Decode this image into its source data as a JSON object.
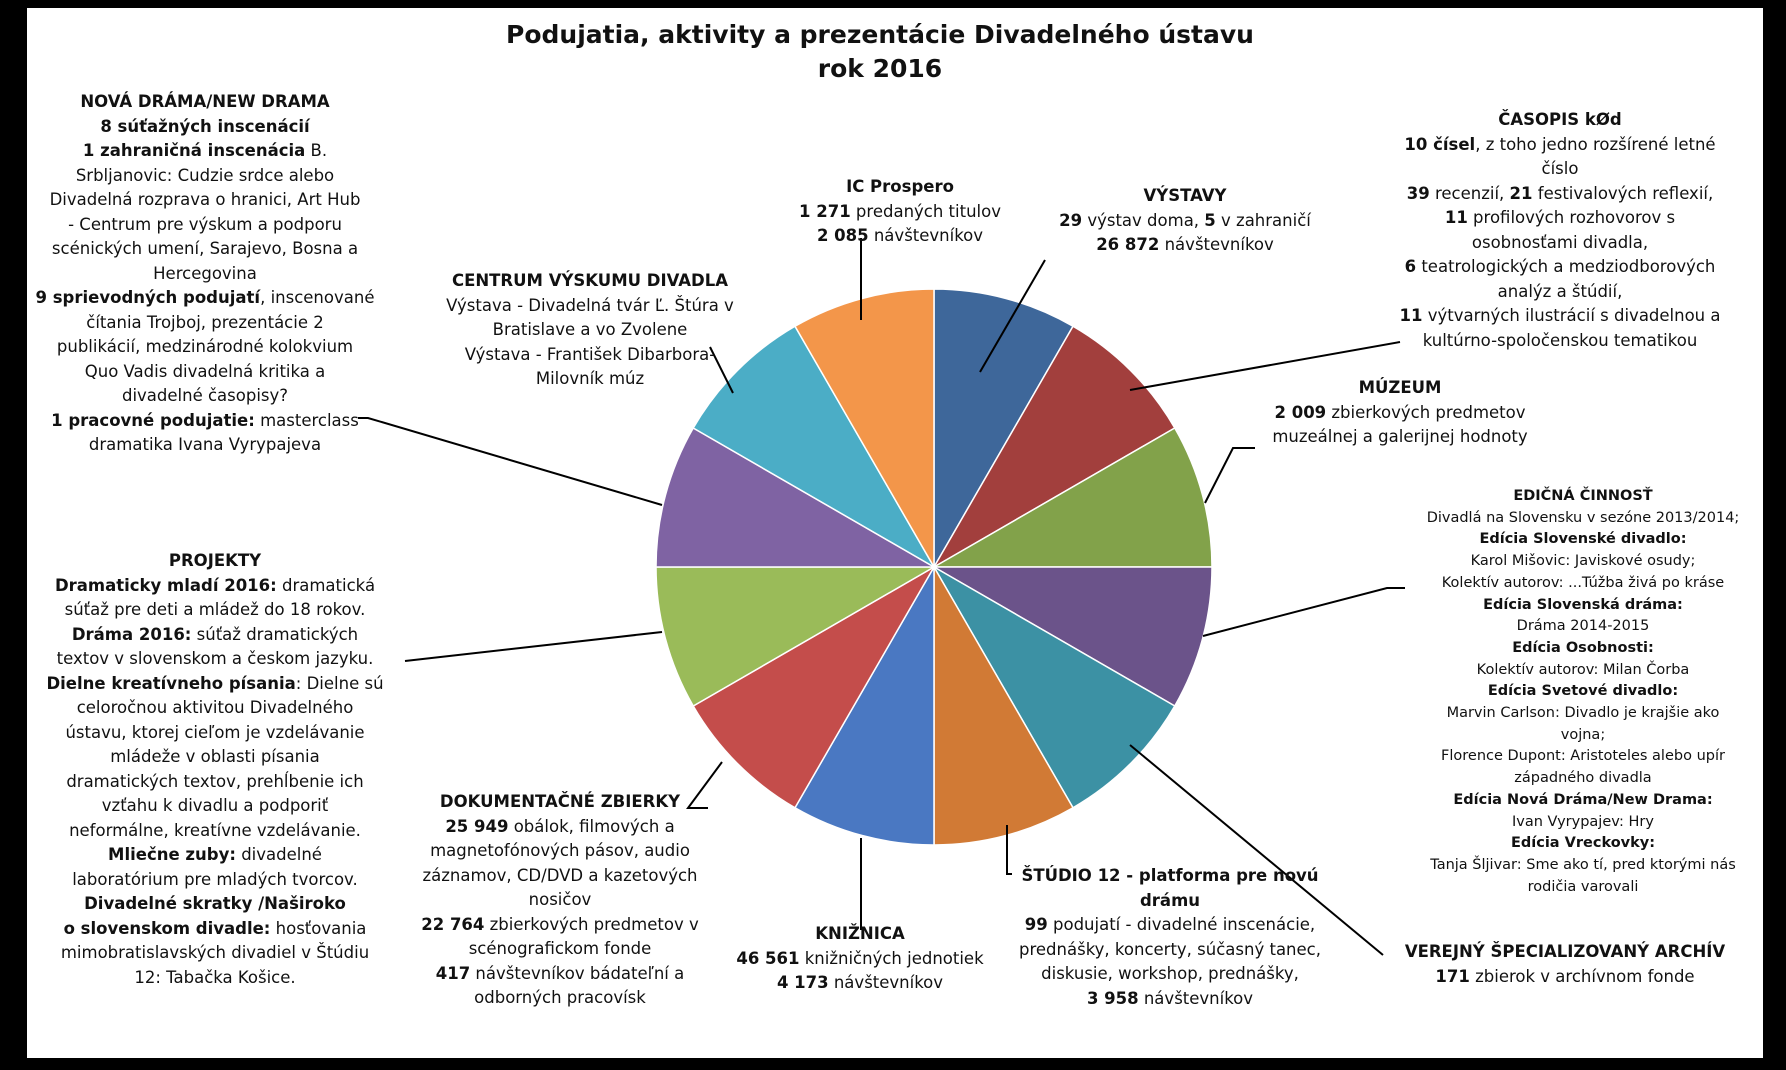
{
  "chart_data": {
    "type": "pie",
    "title": "Podujatia, aktivity a prezentácie Divadelného ústavu",
    "subtitle": "rok 2016",
    "slices": [
      {
        "name": "VÝSTAVY",
        "value": 1,
        "color": "#3e679a"
      },
      {
        "name": "ČASOPIS kØd",
        "value": 1,
        "color": "#a23f3d"
      },
      {
        "name": "MÚZEUM",
        "value": 1,
        "color": "#82a24a"
      },
      {
        "name": "EDIČNÁ ČINNOSŤ",
        "value": 1,
        "color": "#6b538a"
      },
      {
        "name": "VEREJNÝ ŠPECIALIZOVANÝ ARCHÍV",
        "value": 1,
        "color": "#3c91a4"
      },
      {
        "name": "ŠTÚDIO 12 - platforma pre novú drámu",
        "value": 1,
        "color": "#d17a35"
      },
      {
        "name": "KNIŽNICA",
        "value": 1,
        "color": "#4a78c2"
      },
      {
        "name": "DOKUMENTAČNÉ ZBIERKY",
        "value": 1,
        "color": "#c44d4b"
      },
      {
        "name": "PROJEKTY",
        "value": 1,
        "color": "#9abb59"
      },
      {
        "name": "NOVÁ DRÁMA/NEW DRAMA",
        "value": 1,
        "color": "#7f63a3"
      },
      {
        "name": "CENTRUM VÝSKUMU DIVADLA",
        "value": 1,
        "color": "#4badc6"
      },
      {
        "name": "IC Prospero",
        "value": 1,
        "color": "#f3964a"
      }
    ]
  },
  "labels": {
    "vystavy": [
      [
        {
          "t": "VÝSTAVY",
          "b": true
        }
      ],
      [
        {
          "t": "29",
          "b": true
        },
        {
          "t": " výstav doma, "
        },
        {
          "t": "5",
          "b": true
        },
        {
          "t": " v zahraničí"
        }
      ],
      [
        {
          "t": "26 872",
          "b": true
        },
        {
          "t": " návštevníkov"
        }
      ]
    ],
    "casopis": [
      [
        {
          "t": "ČASOPIS kØd",
          "b": true
        }
      ],
      [
        {
          "t": "10 čísel",
          "b": true
        },
        {
          "t": ", z toho jedno rozšírené letné"
        }
      ],
      [
        {
          "t": "číslo"
        }
      ],
      [
        {
          "t": "39",
          "b": true
        },
        {
          "t": " recenzií, "
        },
        {
          "t": "21",
          "b": true
        },
        {
          "t": " festivalových reflexií,"
        }
      ],
      [
        {
          "t": "11",
          "b": true
        },
        {
          "t": " profilových rozhovorov s"
        }
      ],
      [
        {
          "t": "osobnosťami divadla,"
        }
      ],
      [
        {
          "t": "6",
          "b": true
        },
        {
          "t": " teatrologických a medziodborových"
        }
      ],
      [
        {
          "t": "analýz a štúdií,"
        }
      ],
      [
        {
          "t": "11",
          "b": true
        },
        {
          "t": " výtvarných ilustrácií s divadelnou a"
        }
      ],
      [
        {
          "t": "kultúrno-spoločenskou tematikou"
        }
      ]
    ],
    "muzeum": [
      [
        {
          "t": "MÚZEUM",
          "b": true
        }
      ],
      [
        {
          "t": "2 009",
          "b": true
        },
        {
          "t": " zbierkových predmetov"
        }
      ],
      [
        {
          "t": "muzeálnej a galerijnej hodnoty"
        }
      ]
    ],
    "edicna": [
      [
        {
          "t": "EDIČNÁ ČINNOSŤ",
          "b": true
        }
      ],
      [
        {
          "t": "Divadlá na Slovensku v sezóne 2013/2014;"
        }
      ],
      [
        {
          "t": "Edícia Slovenské divadlo:",
          "b": true
        }
      ],
      [
        {
          "t": "Karol Mišovic: Javiskové osudy;"
        }
      ],
      [
        {
          "t": "Kolektív autorov: ...Túžba živá po kráse"
        }
      ],
      [
        {
          "t": "Edícia Slovenská dráma:",
          "b": true
        }
      ],
      [
        {
          "t": "Dráma 2014-2015"
        }
      ],
      [
        {
          "t": "Edícia Osobnosti:",
          "b": true
        }
      ],
      [
        {
          "t": "Kolektív autorov: Milan Čorba"
        }
      ],
      [
        {
          "t": "Edícia Svetové divadlo:",
          "b": true
        }
      ],
      [
        {
          "t": "Marvin Carlson: Divadlo je krajšie ako"
        }
      ],
      [
        {
          "t": "vojna;"
        }
      ],
      [
        {
          "t": "Florence Dupont: Aristoteles alebo upír"
        }
      ],
      [
        {
          "t": "západného divadla"
        }
      ],
      [
        {
          "t": "Edícia Nová Dráma/New Drama:",
          "b": true
        }
      ],
      [
        {
          "t": "Ivan Vyrypajev: Hry"
        }
      ],
      [
        {
          "t": "Edícia Vreckovky:",
          "b": true
        }
      ],
      [
        {
          "t": "Tanja Šljivar: Sme ako tí, pred ktorými nás"
        }
      ],
      [
        {
          "t": "rodičia varovali"
        }
      ]
    ],
    "archiv": [
      [
        {
          "t": "VEREJNÝ ŠPECIALIZOVANÝ ARCHÍV",
          "b": true
        }
      ],
      [
        {
          "t": "171",
          "b": true
        },
        {
          "t": " zbierok v archívnom fonde"
        }
      ]
    ],
    "studio": [
      [
        {
          "t": "ŠTÚDIO 12 - platforma pre novú",
          "b": true
        }
      ],
      [
        {
          "t": "drámu",
          "b": true
        }
      ],
      [
        {
          "t": "99",
          "b": true
        },
        {
          "t": " podujatí - divadelné inscenácie,"
        }
      ],
      [
        {
          "t": "prednášky, koncerty, súčasný tanec,"
        }
      ],
      [
        {
          "t": "diskusie, workshop, prednášky,"
        }
      ],
      [
        {
          "t": "3 958",
          "b": true
        },
        {
          "t": " návštevníkov"
        }
      ]
    ],
    "kniznica": [
      [
        {
          "t": "KNIŽNICA",
          "b": true
        }
      ],
      [
        {
          "t": "46 561",
          "b": true
        },
        {
          "t": " knižničných jednotiek"
        }
      ],
      [
        {
          "t": "4 173",
          "b": true
        },
        {
          "t": " návštevníkov"
        }
      ]
    ],
    "dokumentacne": [
      [
        {
          "t": "DOKUMENTAČNÉ ZBIERKY",
          "b": true
        }
      ],
      [
        {
          "t": "25 949",
          "b": true
        },
        {
          "t": " obálok, filmových a"
        }
      ],
      [
        {
          "t": "magnetofónových pásov, audio"
        }
      ],
      [
        {
          "t": "záznamov, CD/DVD a kazetových"
        }
      ],
      [
        {
          "t": "nosičov"
        }
      ],
      [
        {
          "t": "22 764",
          "b": true
        },
        {
          "t": " zbierkových predmetov v"
        }
      ],
      [
        {
          "t": "scénografickom fonde"
        }
      ],
      [
        {
          "t": "417",
          "b": true
        },
        {
          "t": " návštevníkov bádateľní a"
        }
      ],
      [
        {
          "t": "odborných pracovísk"
        }
      ]
    ],
    "projekty": [
      [
        {
          "t": "PROJEKTY",
          "b": true
        }
      ],
      [
        {
          "t": "Dramaticky mladí 2016:",
          "b": true
        },
        {
          "t": " dramatická"
        }
      ],
      [
        {
          "t": "súťaž pre deti a mládež do 18 rokov."
        }
      ],
      [
        {
          "t": "Dráma 2016:",
          "b": true
        },
        {
          "t": "  súťaž dramatických"
        }
      ],
      [
        {
          "t": "textov v slovenskom a českom jazyku."
        }
      ],
      [
        {
          "t": "Dielne kreatívneho písania",
          "b": true
        },
        {
          "t": ": Dielne sú"
        }
      ],
      [
        {
          "t": "celoročnou aktivitou Divadelného"
        }
      ],
      [
        {
          "t": "ústavu, ktorej cieľom je vzdelávanie"
        }
      ],
      [
        {
          "t": "mládeže v oblasti písania"
        }
      ],
      [
        {
          "t": "dramatických textov, prehĺbenie ich"
        }
      ],
      [
        {
          "t": "vzťahu k divadlu a podporiť"
        }
      ],
      [
        {
          "t": "neformálne, kreatívne vzdelávanie."
        }
      ],
      [
        {
          "t": "Mliečne zuby:",
          "b": true
        },
        {
          "t": "  divadelné"
        }
      ],
      [
        {
          "t": "laboratórium pre mladých tvorcov."
        }
      ],
      [
        {
          "t": "Divadelné skratky /Naširoko",
          "b": true
        }
      ],
      [
        {
          "t": "o slovenskom divadle:",
          "b": true
        },
        {
          "t": "  hosťovania"
        }
      ],
      [
        {
          "t": "mimobratislavských divadiel v Štúdiu"
        }
      ],
      [
        {
          "t": "12: Tabačka Košice."
        }
      ]
    ],
    "novadrama": [
      [
        {
          "t": "NOVÁ DRÁMA/NEW DRAMA",
          "b": true
        }
      ],
      [
        {
          "t": "8 súťažných inscenácií",
          "b": true
        }
      ],
      [
        {
          "t": "1 zahraničná inscenácia",
          "b": true
        },
        {
          "t": " B."
        }
      ],
      [
        {
          "t": "Srbljanovic: Cudzie srdce alebo"
        }
      ],
      [
        {
          "t": "Divadelná rozprava o hranici, Art Hub"
        }
      ],
      [
        {
          "t": "- Centrum pre výskum a podporu"
        }
      ],
      [
        {
          "t": "scénických umení, Sarajevo, Bosna a"
        }
      ],
      [
        {
          "t": "Hercegovina"
        }
      ],
      [
        {
          "t": "9 sprievodných podujatí",
          "b": true
        },
        {
          "t": ", inscenované"
        }
      ],
      [
        {
          "t": "čítania Trojboj, prezentácie 2"
        }
      ],
      [
        {
          "t": "publikácií, medzinárodné kolokvium"
        }
      ],
      [
        {
          "t": "Quo Vadis divadelná kritika a"
        }
      ],
      [
        {
          "t": "divadelné časopisy?"
        }
      ],
      [
        {
          "t": "1 pracovné podujatie:",
          "b": true
        },
        {
          "t": " masterclass"
        }
      ],
      [
        {
          "t": "dramatika Ivana Vyrypajeva"
        }
      ]
    ],
    "centrum": [
      [
        {
          "t": "CENTRUM VÝSKUMU DIVADLA",
          "b": true
        }
      ],
      [
        {
          "t": "Výstava - Divadelná tvár Ľ. Štúra v"
        }
      ],
      [
        {
          "t": "Bratislave a vo Zvolene"
        }
      ],
      [
        {
          "t": "Výstava - František Dibarbora-"
        }
      ],
      [
        {
          "t": "Milovník múz"
        }
      ]
    ],
    "prospero": [
      [
        {
          "t": "IC Prospero",
          "b": true
        }
      ],
      [
        {
          "t": "1 271",
          "b": true
        },
        {
          "t": " predaných titulov"
        }
      ],
      [
        {
          "t": "2 085",
          "b": true
        },
        {
          "t": " návštevníkov"
        }
      ]
    ]
  }
}
